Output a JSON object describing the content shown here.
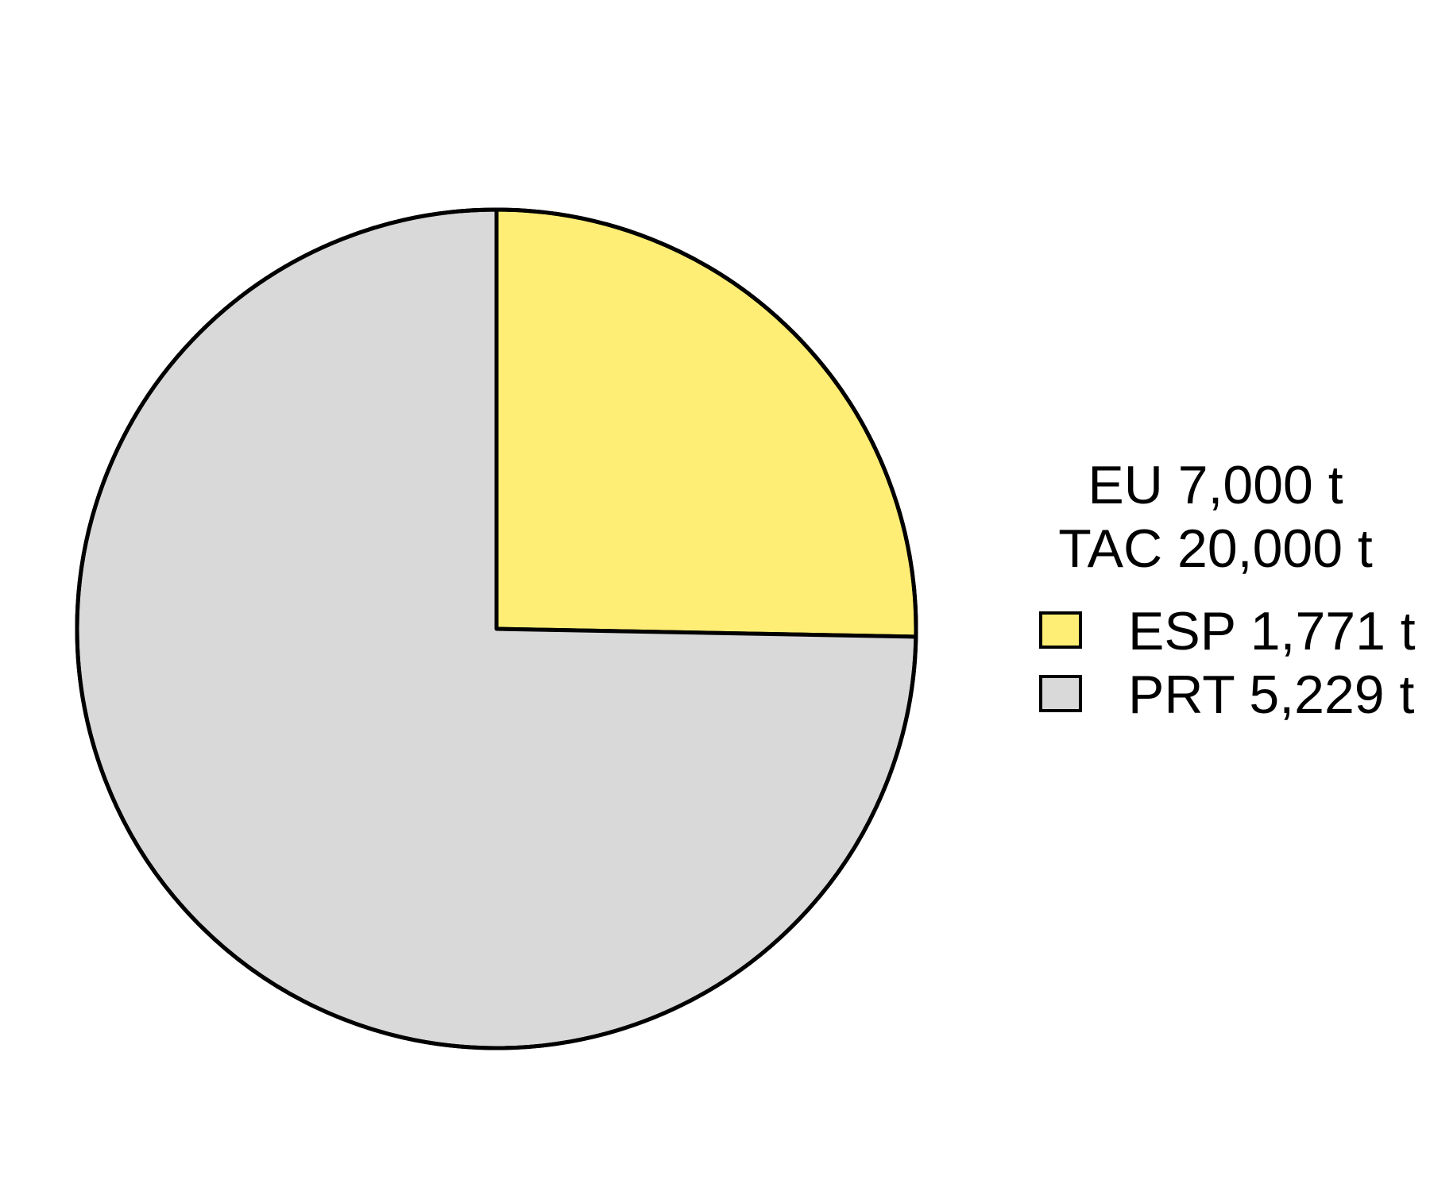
{
  "chart_data": {
    "type": "pie",
    "title": "",
    "start_angle": "12 o'clock",
    "direction": "clockwise",
    "slices": [
      {
        "label": "ESP 1,771 t",
        "category": "ESP",
        "value": 1771,
        "color": "#FFEE75"
      },
      {
        "label": "PRT 5,229 t",
        "category": "PRT",
        "value": 5229,
        "color": "#D9D9D9"
      }
    ],
    "legend": {
      "title_lines": [
        "EU 7,000 t",
        "TAC 20,000 t"
      ],
      "placement": "right"
    },
    "outline_color": "#000000"
  }
}
